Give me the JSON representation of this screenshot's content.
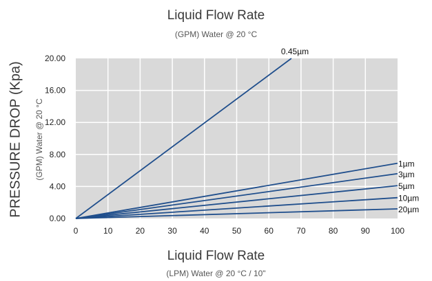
{
  "top_title": "Liquid Flow Rate",
  "top_subtitle": "(GPM) Water @ 20 °C",
  "bottom_title": "Liquid Flow Rate",
  "bottom_subtitle": "(LPM) Water @ 20 °C / 10\"",
  "colors": {
    "plot_background": "#d9d9d9",
    "grid": "#ffffff",
    "line": "#1f4e8c"
  },
  "chart_data": {
    "type": "line",
    "ylabel": "PRESSURE DROP (Kpa)",
    "ylabel_secondary": "(GPM) Water @ 20 °C",
    "xlim": [
      0,
      100
    ],
    "ylim": [
      0,
      20
    ],
    "x_ticks": [
      "0",
      "10",
      "20",
      "30",
      "40",
      "50",
      "60",
      "70",
      "80",
      "90",
      "100"
    ],
    "y_ticks": [
      "0.00",
      "4.00",
      "8.00",
      "12.00",
      "16.00",
      "20.00"
    ],
    "grid": true,
    "series": [
      {
        "name": "0.45µm",
        "x": [
          0,
          67
        ],
        "y": [
          0,
          20
        ]
      },
      {
        "name": "1µm",
        "x": [
          0,
          100
        ],
        "y": [
          0,
          6.9
        ]
      },
      {
        "name": "3µm",
        "x": [
          0,
          100
        ],
        "y": [
          0,
          5.6
        ]
      },
      {
        "name": "5µm",
        "x": [
          0,
          100
        ],
        "y": [
          0,
          4.1
        ]
      },
      {
        "name": "10µm",
        "x": [
          0,
          100
        ],
        "y": [
          0,
          2.6
        ]
      },
      {
        "name": "20µm",
        "x": [
          0,
          100
        ],
        "y": [
          0,
          1.2
        ]
      }
    ]
  }
}
